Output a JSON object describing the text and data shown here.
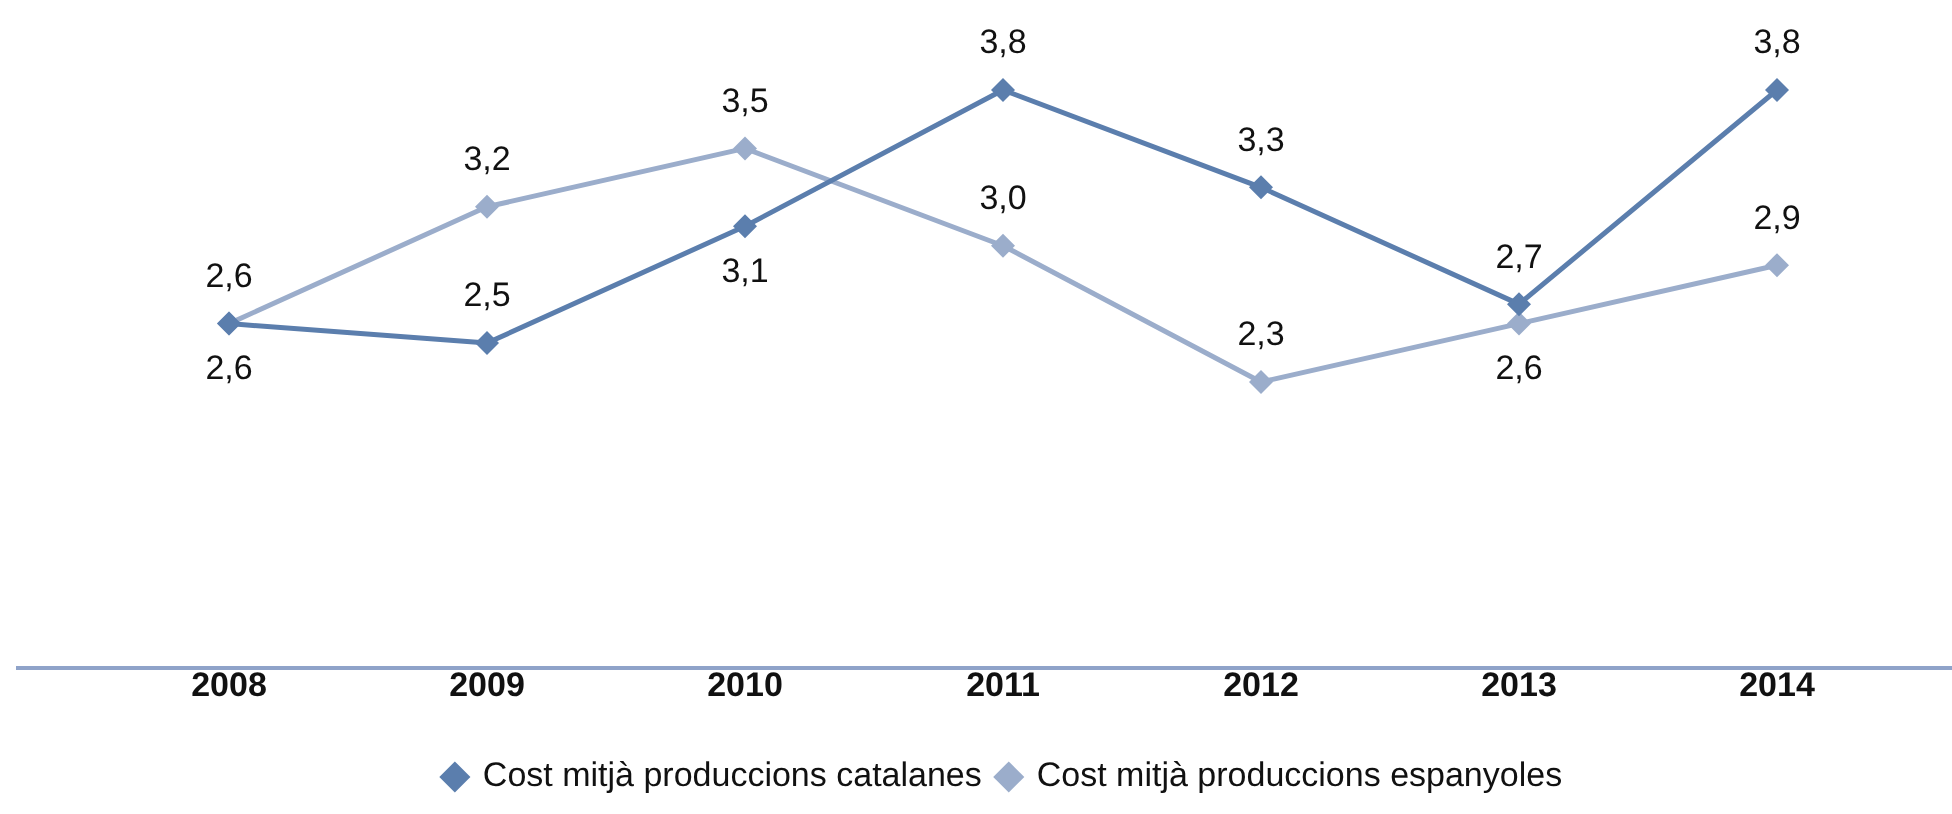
{
  "chart_data": {
    "type": "line",
    "categories": [
      "2008",
      "2009",
      "2010",
      "2011",
      "2012",
      "2013",
      "2014"
    ],
    "series": [
      {
        "name": "Cost mitjà produccions catalanes",
        "color": "#5b7ead",
        "values": [
          2.6,
          2.5,
          3.1,
          3.8,
          3.3,
          2.7,
          3.8
        ],
        "value_labels": [
          "2,6",
          "2,5",
          "3,1",
          "3,8",
          "3,3",
          "2,7",
          "3,8"
        ]
      },
      {
        "name": "Cost mitjà produccions espanyoles",
        "color": "#9badcb",
        "values": [
          2.6,
          3.2,
          3.5,
          3.0,
          2.3,
          2.6,
          2.9
        ],
        "value_labels": [
          "2,6",
          "3,2",
          "3,5",
          "3,0",
          "2,3",
          "2,6",
          "2,9"
        ]
      }
    ],
    "tick_labels": "x",
    "grid": false,
    "legend": "bottom",
    "marker": "diamond",
    "line_style": "solid"
  }
}
